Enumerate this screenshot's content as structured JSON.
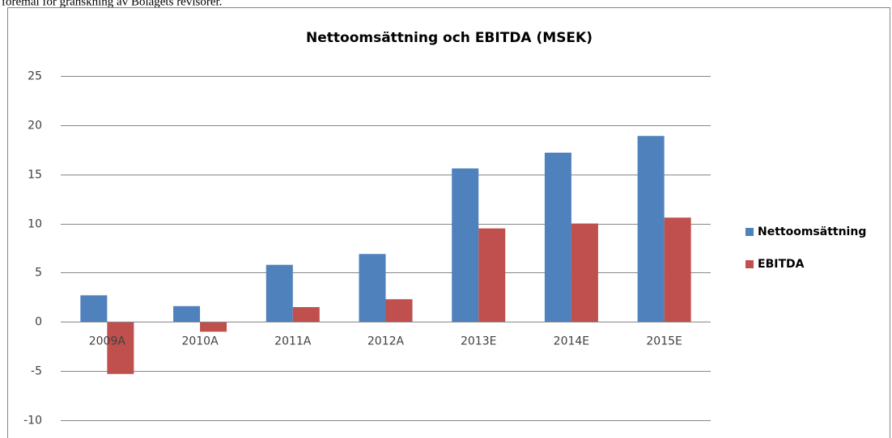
{
  "page_text": "föremål för granskning av Bolagets revisorer.",
  "chart_data": {
    "type": "bar",
    "title": "Nettoomsättning och EBITDA (MSEK)",
    "categories": [
      "2009A",
      "2010A",
      "2011A",
      "2012A",
      "2013E",
      "2014E",
      "2015E"
    ],
    "series": [
      {
        "name": "Nettoomsättning",
        "color": "#4f81bd",
        "values": [
          2.7,
          1.6,
          5.8,
          6.9,
          15.6,
          17.2,
          18.9
        ]
      },
      {
        "name": "EBITDA",
        "color": "#c0504d",
        "values": [
          -5.3,
          -1.0,
          1.5,
          2.3,
          9.5,
          10.0,
          10.6
        ]
      }
    ],
    "ylim": [
      -10,
      25
    ],
    "yticks": [
      -10,
      -5,
      0,
      5,
      10,
      15,
      20,
      25
    ],
    "grid": true,
    "legend": "right"
  }
}
